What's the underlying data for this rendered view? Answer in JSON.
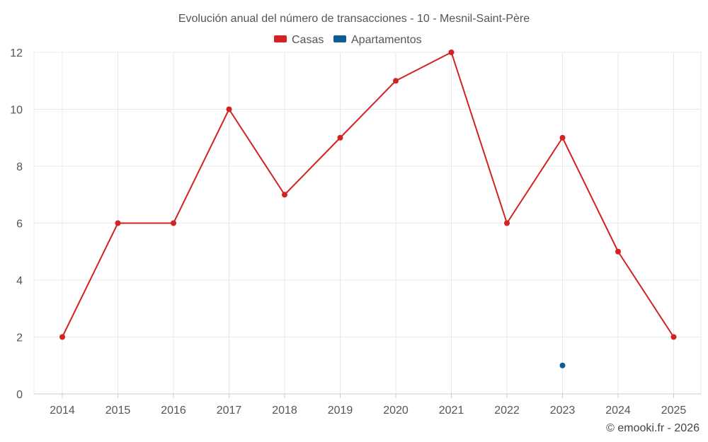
{
  "chart_data": {
    "type": "line",
    "title": "Evolución anual del número de transacciones - 10 - Mesnil-Saint-Père",
    "xlabel": "",
    "ylabel": "",
    "categories": [
      "2014",
      "2015",
      "2016",
      "2017",
      "2018",
      "2019",
      "2020",
      "2021",
      "2022",
      "2023",
      "2024",
      "2025"
    ],
    "ylim": [
      0,
      12
    ],
    "yticks": [
      0,
      2,
      4,
      6,
      8,
      10,
      12
    ],
    "grid": true,
    "legend_position": "top-center",
    "series": [
      {
        "name": "Casas",
        "color": "#d32222",
        "values": [
          2,
          6,
          6,
          10,
          7,
          9,
          11,
          12,
          6,
          9,
          5,
          2
        ]
      },
      {
        "name": "Apartamentos",
        "color": "#0b5d96",
        "values": [
          null,
          null,
          null,
          null,
          null,
          null,
          null,
          null,
          null,
          1,
          null,
          null
        ]
      }
    ]
  },
  "credit": "© emooki.fr - 2026"
}
